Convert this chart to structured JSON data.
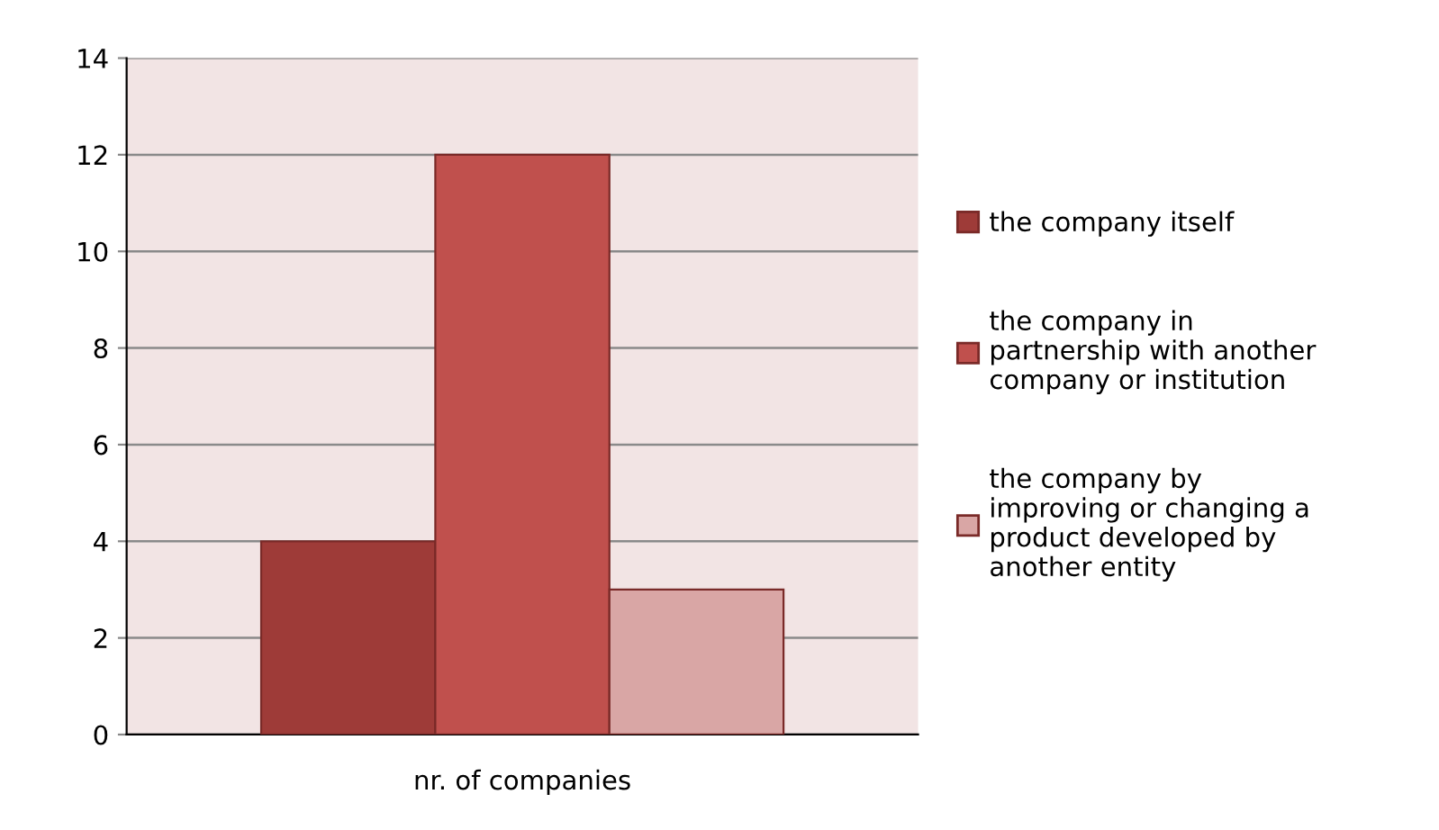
{
  "chart_data": {
    "type": "bar",
    "categories": [
      "nr. of companies"
    ],
    "series": [
      {
        "name": "the company itself",
        "color": "#9e3b38",
        "values": [
          4
        ]
      },
      {
        "name": "the company in\npartnership with another\ncompany or institution",
        "color": "#c0504d",
        "values": [
          12
        ]
      },
      {
        "name": "the company by\nimproving or changing a\nproduct developed by\nanother entity",
        "color": "#d9a6a5",
        "values": [
          3
        ]
      }
    ],
    "ylim": [
      0,
      14
    ],
    "yticks": [
      0,
      2,
      4,
      6,
      8,
      10,
      12,
      14
    ],
    "grid": "y",
    "legend": "right"
  }
}
